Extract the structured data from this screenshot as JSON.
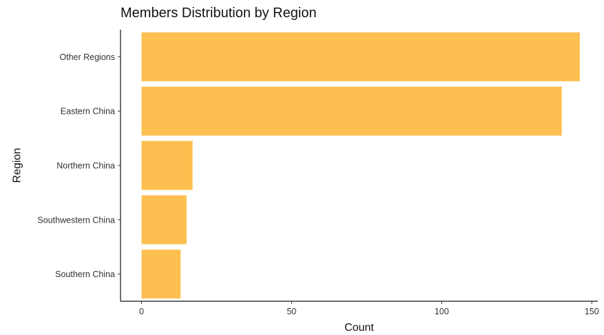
{
  "chart_data": {
    "type": "bar",
    "orientation": "horizontal",
    "title": "Members Distribution by Region",
    "xlabel": "Count",
    "ylabel": "Region",
    "categories": [
      "Other Regions",
      "Eastern China",
      "Northern China",
      "Southwestern China",
      "Southern China"
    ],
    "values": [
      146,
      140,
      17,
      15,
      13
    ],
    "xlim": [
      -7,
      152
    ],
    "xticks": [
      0,
      50,
      100,
      150
    ],
    "grid": false,
    "legend": "none",
    "bar_color": "#FDBF4F"
  }
}
